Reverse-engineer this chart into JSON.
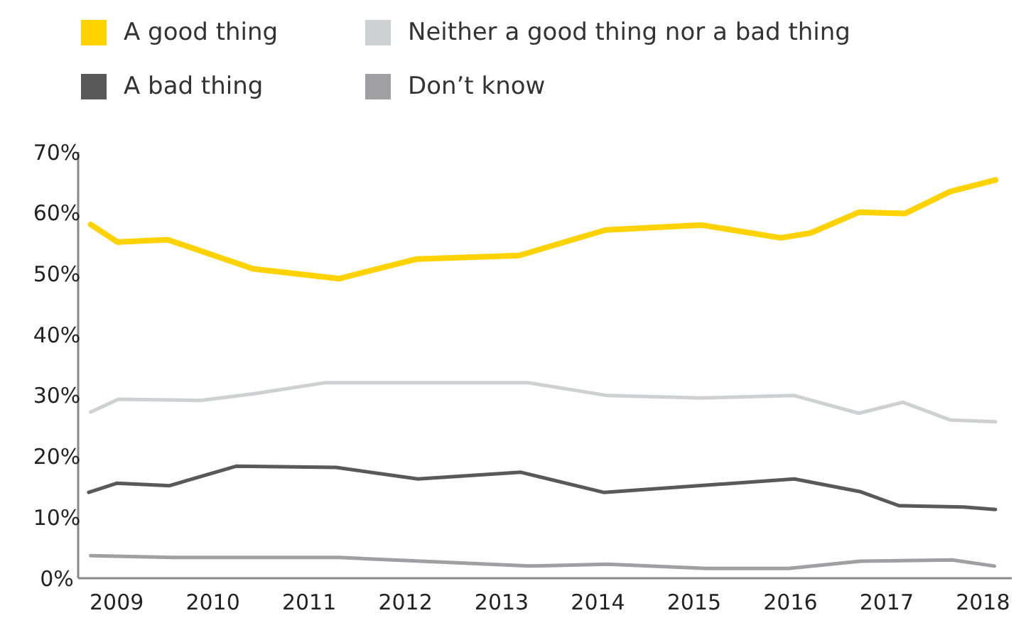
{
  "chart_data": {
    "type": "line",
    "xlim": [
      2008.6,
      2018.3
    ],
    "xticks": [
      2009,
      2010,
      2011,
      2012,
      2013,
      2014,
      2015,
      2016,
      2017,
      2018
    ],
    "ylim": [
      0,
      70
    ],
    "yticks": [
      {
        "value": 0,
        "label": "0%"
      },
      {
        "value": 10,
        "label": "10%"
      },
      {
        "value": 20,
        "label": "20%"
      },
      {
        "value": 30,
        "label": "30%"
      },
      {
        "value": 40,
        "label": "40%"
      },
      {
        "value": 50,
        "label": "50%"
      },
      {
        "value": 60,
        "label": "60%"
      },
      {
        "value": 70,
        "label": "70%"
      }
    ],
    "grid": false,
    "legend": "top",
    "marker": "none",
    "line_style": "solid",
    "series": [
      {
        "name": "A good thing",
        "color": "#ffd200",
        "x": [
          2008.73,
          2009.01,
          2009.53,
          2010.42,
          2011.31,
          2012.11,
          2013.18,
          2014.08,
          2015.08,
          2015.9,
          2016.21,
          2016.71,
          2017.19,
          2017.66,
          2018.13
        ],
        "values": [
          58.1,
          55.2,
          55.6,
          50.8,
          49.2,
          52.4,
          53.0,
          57.2,
          58.0,
          55.9,
          56.7,
          60.1,
          59.9,
          63.5,
          65.4
        ]
      },
      {
        "name": "A bad thing",
        "color": "#595959",
        "x": [
          2008.71,
          2009.0,
          2009.55,
          2010.24,
          2011.28,
          2012.13,
          2013.2,
          2014.06,
          2016.04,
          2016.73,
          2017.13,
          2017.8,
          2018.13
        ],
        "values": [
          14.1,
          15.6,
          15.2,
          18.4,
          18.2,
          16.3,
          17.4,
          14.1,
          16.3,
          14.2,
          11.9,
          11.7,
          11.3
        ]
      },
      {
        "name": "Neither a good thing nor a bad thing",
        "color": "#cfd0d2",
        "x": [
          2008.73,
          2009.02,
          2009.87,
          2010.43,
          2011.16,
          2013.28,
          2014.1,
          2015.07,
          2016.04,
          2016.71,
          2017.17,
          2017.66,
          2018.13
        ],
        "values": [
          27.3,
          29.4,
          29.2,
          30.3,
          32.1,
          32.1,
          30.0,
          29.6,
          30.0,
          27.1,
          28.9,
          26.0,
          25.7
        ]
      },
      {
        "name": "Don’t know",
        "color": "#a0a0a4",
        "x": [
          2008.73,
          2009.58,
          2011.31,
          2012.16,
          2013.28,
          2014.1,
          2015.13,
          2015.98,
          2016.73,
          2017.68,
          2018.12
        ],
        "values": [
          3.7,
          3.4,
          3.4,
          2.8,
          2.0,
          2.3,
          1.6,
          1.6,
          2.8,
          3.0,
          2.0
        ]
      }
    ]
  }
}
